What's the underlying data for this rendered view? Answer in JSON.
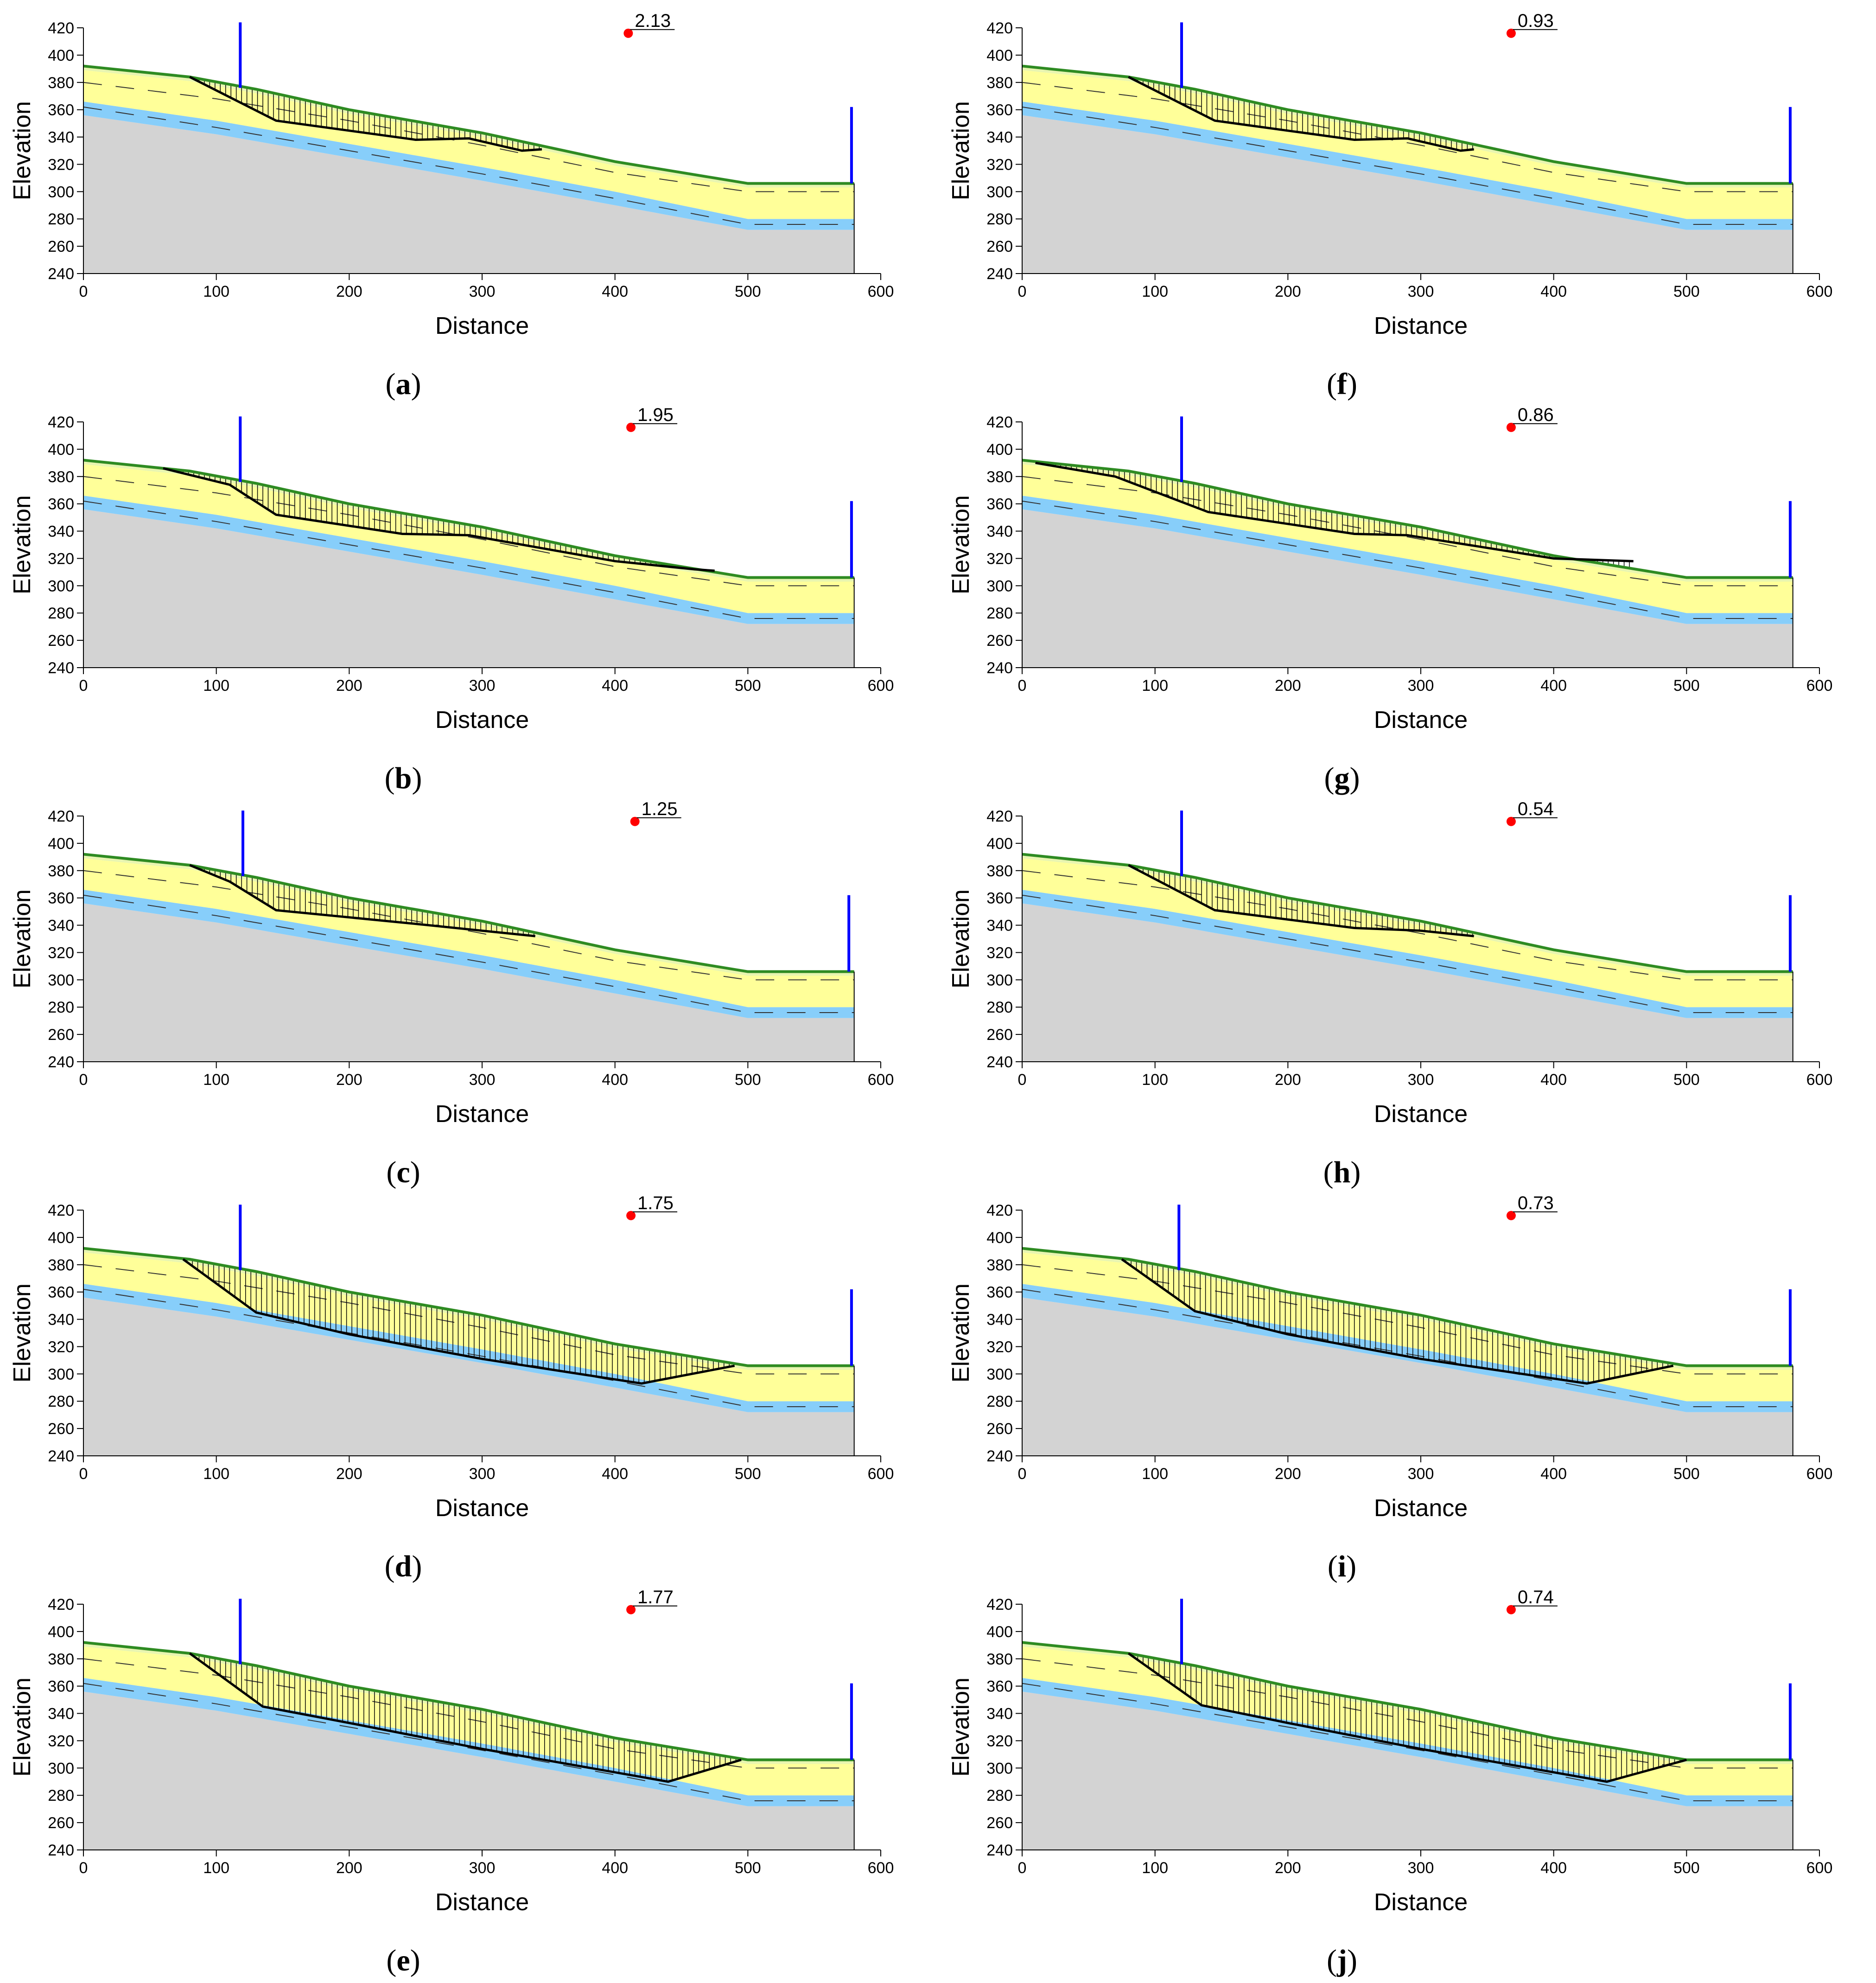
{
  "colors": {
    "background": "#ffffff",
    "bedrock": "#d3d3d3",
    "aquifer_band": "#87cefa",
    "upper_soil": "#ffff99",
    "top_strip": "#e8f5b0",
    "ground_line": "#2e8b22",
    "slip_line": "#000000",
    "water_marker": "#0000ff",
    "fos_point": "#ff0000"
  },
  "chart_data": [
    {
      "id": "a",
      "type": "scatter",
      "caption_letter": "a",
      "factor_of_safety": "2.13",
      "xlabel": "Distance",
      "ylabel": "Elevation",
      "xlim": [
        0,
        600
      ],
      "ylim": [
        240,
        420
      ],
      "x_ticks": [
        "0",
        "100",
        "200",
        "300",
        "400",
        "500",
        "600"
      ],
      "y_ticks": [
        "240",
        "260",
        "280",
        "300",
        "320",
        "340",
        "360",
        "380",
        "400",
        "420"
      ],
      "fos_point": {
        "x": 410,
        "y": 416
      },
      "ground_surface": [
        [
          0,
          392
        ],
        [
          80,
          384
        ],
        [
          130,
          375
        ],
        [
          200,
          360
        ],
        [
          300,
          343
        ],
        [
          400,
          322
        ],
        [
          500,
          306
        ],
        [
          580,
          306
        ]
      ],
      "slip_surface": [
        [
          80,
          384
        ],
        [
          145,
          352
        ],
        [
          250,
          338
        ],
        [
          290,
          339
        ],
        [
          330,
          330
        ],
        [
          345,
          331
        ]
      ],
      "slices_bottom_ground": true,
      "water_markers": [
        {
          "x": 118,
          "top": 424,
          "bottom": 376
        },
        {
          "x": 578,
          "top": 362,
          "bottom": 306
        }
      ]
    },
    {
      "id": "b",
      "type": "scatter",
      "caption_letter": "b",
      "factor_of_safety": "1.95",
      "xlabel": "Distance",
      "ylabel": "Elevation",
      "xlim": [
        0,
        600
      ],
      "ylim": [
        240,
        420
      ],
      "x_ticks": [
        "0",
        "100",
        "200",
        "300",
        "400",
        "500",
        "600"
      ],
      "y_ticks": [
        "240",
        "260",
        "280",
        "300",
        "320",
        "340",
        "360",
        "380",
        "400",
        "420"
      ],
      "fos_point": {
        "x": 412,
        "y": 416
      },
      "ground_surface": [
        [
          0,
          392
        ],
        [
          80,
          384
        ],
        [
          130,
          375
        ],
        [
          200,
          360
        ],
        [
          300,
          343
        ],
        [
          400,
          322
        ],
        [
          500,
          306
        ],
        [
          580,
          306
        ]
      ],
      "slip_surface": [
        [
          60,
          386
        ],
        [
          110,
          374
        ],
        [
          145,
          352
        ],
        [
          240,
          338
        ],
        [
          290,
          337
        ],
        [
          400,
          318
        ],
        [
          460,
          312
        ],
        [
          475,
          311
        ]
      ],
      "slices_bottom_ground": true,
      "water_markers": [
        {
          "x": 118,
          "top": 424,
          "bottom": 376
        },
        {
          "x": 578,
          "top": 362,
          "bottom": 306
        }
      ]
    },
    {
      "id": "c",
      "type": "scatter",
      "caption_letter": "c",
      "factor_of_safety": "1.25",
      "xlabel": "Distance",
      "ylabel": "Elevation",
      "xlim": [
        0,
        600
      ],
      "ylim": [
        240,
        420
      ],
      "x_ticks": [
        "0",
        "100",
        "200",
        "300",
        "400",
        "500",
        "600"
      ],
      "y_ticks": [
        "240",
        "260",
        "280",
        "300",
        "320",
        "340",
        "360",
        "380",
        "400",
        "420"
      ],
      "fos_point": {
        "x": 415,
        "y": 416
      },
      "ground_surface": [
        [
          0,
          392
        ],
        [
          80,
          384
        ],
        [
          130,
          375
        ],
        [
          200,
          360
        ],
        [
          300,
          343
        ],
        [
          400,
          322
        ],
        [
          500,
          306
        ],
        [
          580,
          306
        ]
      ],
      "slip_surface": [
        [
          80,
          384
        ],
        [
          110,
          372
        ],
        [
          145,
          351
        ],
        [
          250,
          341
        ],
        [
          300,
          336
        ],
        [
          340,
          332
        ]
      ],
      "slices_bottom_ground": true,
      "water_markers": [
        {
          "x": 120,
          "top": 424,
          "bottom": 376
        },
        {
          "x": 576,
          "top": 362,
          "bottom": 306
        }
      ]
    },
    {
      "id": "d",
      "type": "scatter",
      "caption_letter": "d",
      "factor_of_safety": "1.75",
      "xlabel": "Distance",
      "ylabel": "Elevation",
      "xlim": [
        0,
        600
      ],
      "ylim": [
        240,
        420
      ],
      "x_ticks": [
        "0",
        "100",
        "200",
        "300",
        "400",
        "500",
        "600"
      ],
      "y_ticks": [
        "240",
        "260",
        "280",
        "300",
        "320",
        "340",
        "360",
        "380",
        "400",
        "420"
      ],
      "fos_point": {
        "x": 412,
        "y": 416
      },
      "ground_surface": [
        [
          0,
          392
        ],
        [
          80,
          384
        ],
        [
          130,
          375
        ],
        [
          200,
          360
        ],
        [
          300,
          343
        ],
        [
          400,
          322
        ],
        [
          500,
          306
        ],
        [
          580,
          306
        ]
      ],
      "slip_surface": [
        [
          75,
          384
        ],
        [
          130,
          345
        ],
        [
          200,
          329
        ],
        [
          300,
          311
        ],
        [
          420,
          293
        ],
        [
          490,
          306
        ]
      ],
      "slices_bottom_ground": true,
      "water_markers": [
        {
          "x": 118,
          "top": 424,
          "bottom": 376
        },
        {
          "x": 578,
          "top": 362,
          "bottom": 306
        }
      ]
    },
    {
      "id": "e",
      "type": "scatter",
      "caption_letter": "e",
      "factor_of_safety": "1.77",
      "xlabel": "Distance",
      "ylabel": "Elevation",
      "xlim": [
        0,
        600
      ],
      "ylim": [
        240,
        420
      ],
      "x_ticks": [
        "0",
        "100",
        "200",
        "300",
        "400",
        "500",
        "600"
      ],
      "y_ticks": [
        "240",
        "260",
        "280",
        "300",
        "320",
        "340",
        "360",
        "380",
        "400",
        "420"
      ],
      "fos_point": {
        "x": 412,
        "y": 416
      },
      "ground_surface": [
        [
          0,
          392
        ],
        [
          80,
          384
        ],
        [
          130,
          375
        ],
        [
          200,
          360
        ],
        [
          300,
          343
        ],
        [
          400,
          322
        ],
        [
          500,
          306
        ],
        [
          580,
          306
        ]
      ],
      "slip_surface": [
        [
          80,
          384
        ],
        [
          135,
          345
        ],
        [
          200,
          333
        ],
        [
          300,
          314
        ],
        [
          440,
          290
        ],
        [
          495,
          306
        ]
      ],
      "slices_bottom_ground": true,
      "water_markers": [
        {
          "x": 118,
          "top": 424,
          "bottom": 376
        },
        {
          "x": 578,
          "top": 362,
          "bottom": 306
        }
      ]
    },
    {
      "id": "f",
      "type": "scatter",
      "caption_letter": "f",
      "factor_of_safety": "0.93",
      "xlabel": "Distance",
      "ylabel": "Elevation",
      "xlim": [
        0,
        600
      ],
      "ylim": [
        240,
        420
      ],
      "x_ticks": [
        "0",
        "100",
        "200",
        "300",
        "400",
        "500",
        "600"
      ],
      "y_ticks": [
        "240",
        "260",
        "280",
        "300",
        "320",
        "340",
        "360",
        "380",
        "400",
        "420"
      ],
      "fos_point": {
        "x": 368,
        "y": 416
      },
      "ground_surface": [
        [
          0,
          392
        ],
        [
          80,
          384
        ],
        [
          130,
          375
        ],
        [
          200,
          360
        ],
        [
          300,
          343
        ],
        [
          400,
          322
        ],
        [
          500,
          306
        ],
        [
          580,
          306
        ]
      ],
      "slip_surface": [
        [
          80,
          384
        ],
        [
          145,
          352
        ],
        [
          250,
          338
        ],
        [
          290,
          339
        ],
        [
          330,
          330
        ],
        [
          340,
          331
        ]
      ],
      "slices_bottom_ground": true,
      "water_markers": [
        {
          "x": 120,
          "top": 424,
          "bottom": 376
        },
        {
          "x": 578,
          "top": 362,
          "bottom": 306
        }
      ]
    },
    {
      "id": "g",
      "type": "scatter",
      "caption_letter": "g",
      "factor_of_safety": "0.86",
      "xlabel": "Distance",
      "ylabel": "Elevation",
      "xlim": [
        0,
        600
      ],
      "ylim": [
        240,
        420
      ],
      "x_ticks": [
        "0",
        "100",
        "200",
        "300",
        "400",
        "500",
        "600"
      ],
      "y_ticks": [
        "240",
        "260",
        "280",
        "300",
        "320",
        "340",
        "360",
        "380",
        "400",
        "420"
      ],
      "fos_point": {
        "x": 368,
        "y": 416
      },
      "ground_surface": [
        [
          0,
          392
        ],
        [
          80,
          384
        ],
        [
          130,
          375
        ],
        [
          200,
          360
        ],
        [
          300,
          343
        ],
        [
          400,
          322
        ],
        [
          500,
          306
        ],
        [
          580,
          306
        ]
      ],
      "slip_surface": [
        [
          10,
          390
        ],
        [
          70,
          380
        ],
        [
          140,
          354
        ],
        [
          250,
          338
        ],
        [
          290,
          337
        ],
        [
          400,
          320
        ],
        [
          460,
          318
        ]
      ],
      "slices_bottom_ground": true,
      "water_markers": [
        {
          "x": 120,
          "top": 424,
          "bottom": 376
        },
        {
          "x": 578,
          "top": 362,
          "bottom": 306
        }
      ]
    },
    {
      "id": "h",
      "type": "scatter",
      "caption_letter": "h",
      "factor_of_safety": "0.54",
      "xlabel": "Distance",
      "ylabel": "Elevation",
      "xlim": [
        0,
        600
      ],
      "ylim": [
        240,
        420
      ],
      "x_ticks": [
        "0",
        "100",
        "200",
        "300",
        "400",
        "500",
        "600"
      ],
      "y_ticks": [
        "240",
        "260",
        "280",
        "300",
        "320",
        "340",
        "360",
        "380",
        "400",
        "420"
      ],
      "fos_point": {
        "x": 368,
        "y": 416
      },
      "ground_surface": [
        [
          0,
          392
        ],
        [
          80,
          384
        ],
        [
          130,
          375
        ],
        [
          200,
          360
        ],
        [
          300,
          343
        ],
        [
          400,
          322
        ],
        [
          500,
          306
        ],
        [
          580,
          306
        ]
      ],
      "slip_surface": [
        [
          80,
          384
        ],
        [
          145,
          351
        ],
        [
          250,
          338
        ],
        [
          300,
          336
        ],
        [
          340,
          332
        ]
      ],
      "slices_bottom_ground": true,
      "water_markers": [
        {
          "x": 120,
          "top": 424,
          "bottom": 376
        },
        {
          "x": 578,
          "top": 362,
          "bottom": 306
        }
      ]
    },
    {
      "id": "i",
      "type": "scatter",
      "caption_letter": "i",
      "factor_of_safety": "0.73",
      "xlabel": "Distance",
      "ylabel": "Elevation",
      "xlim": [
        0,
        600
      ],
      "ylim": [
        240,
        420
      ],
      "x_ticks": [
        "0",
        "100",
        "200",
        "300",
        "400",
        "500",
        "600"
      ],
      "y_ticks": [
        "240",
        "260",
        "280",
        "300",
        "320",
        "340",
        "360",
        "380",
        "400",
        "420"
      ],
      "fos_point": {
        "x": 368,
        "y": 416
      },
      "ground_surface": [
        [
          0,
          392
        ],
        [
          80,
          384
        ],
        [
          130,
          375
        ],
        [
          200,
          360
        ],
        [
          300,
          343
        ],
        [
          400,
          322
        ],
        [
          500,
          306
        ],
        [
          580,
          306
        ]
      ],
      "slip_surface": [
        [
          75,
          384
        ],
        [
          130,
          346
        ],
        [
          200,
          329
        ],
        [
          300,
          311
        ],
        [
          425,
          293
        ],
        [
          490,
          306
        ]
      ],
      "slices_bottom_ground": true,
      "water_markers": [
        {
          "x": 118,
          "top": 424,
          "bottom": 376
        },
        {
          "x": 578,
          "top": 362,
          "bottom": 306
        }
      ]
    },
    {
      "id": "j",
      "type": "scatter",
      "caption_letter": "j",
      "factor_of_safety": "0.74",
      "xlabel": "Distance",
      "ylabel": "Elevation",
      "xlim": [
        0,
        600
      ],
      "ylim": [
        240,
        420
      ],
      "x_ticks": [
        "0",
        "100",
        "200",
        "300",
        "400",
        "500",
        "600"
      ],
      "y_ticks": [
        "240",
        "260",
        "280",
        "300",
        "320",
        "340",
        "360",
        "380",
        "400",
        "420"
      ],
      "fos_point": {
        "x": 368,
        "y": 416
      },
      "ground_surface": [
        [
          0,
          392
        ],
        [
          80,
          384
        ],
        [
          130,
          375
        ],
        [
          200,
          360
        ],
        [
          300,
          343
        ],
        [
          400,
          322
        ],
        [
          500,
          306
        ],
        [
          580,
          306
        ]
      ],
      "slip_surface": [
        [
          80,
          384
        ],
        [
          135,
          346
        ],
        [
          200,
          333
        ],
        [
          300,
          314
        ],
        [
          440,
          290
        ],
        [
          500,
          306
        ]
      ],
      "slices_bottom_ground": true,
      "water_markers": [
        {
          "x": 120,
          "top": 424,
          "bottom": 376
        },
        {
          "x": 578,
          "top": 362,
          "bottom": 306
        }
      ]
    }
  ]
}
